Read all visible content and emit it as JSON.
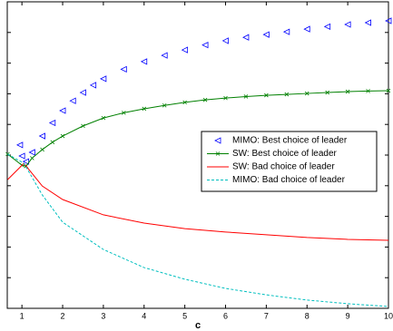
{
  "chart_data": {
    "type": "line",
    "xlabel": "c",
    "xlim": [
      0.64,
      10
    ],
    "xticks": [
      1,
      2,
      3,
      4,
      5,
      6,
      7,
      8,
      9,
      10
    ],
    "ylim": [
      0,
      10
    ],
    "yticks": [
      0,
      1,
      2,
      3,
      4,
      5,
      6,
      7,
      8,
      9,
      10
    ],
    "legend": "center-right",
    "series": [
      {
        "name": "MIMO: Best choice of leader",
        "color": "#0000ff",
        "style": "markers",
        "x": [
          0.95,
          1,
          1.1,
          1.25,
          1.5,
          1.75,
          2,
          2.25,
          2.5,
          2.75,
          3,
          3.5,
          4,
          4.5,
          5,
          5.5,
          6,
          6.5,
          7,
          7.5,
          8,
          8.5,
          9,
          9.5,
          10
        ],
        "values": [
          5.33,
          4.97,
          4.79,
          5.09,
          5.62,
          6.05,
          6.45,
          6.77,
          7.04,
          7.28,
          7.49,
          7.8,
          8.05,
          8.25,
          8.43,
          8.59,
          8.73,
          8.84,
          8.93,
          9.02,
          9.11,
          9.19,
          9.26,
          9.32,
          9.38
        ]
      },
      {
        "name": "SW: Best choice of leader",
        "color": "#008000",
        "style": "line-markers",
        "x": [
          0.65,
          1,
          1.1,
          1.25,
          1.5,
          1.75,
          2,
          2.5,
          3,
          3.5,
          4,
          4.5,
          5,
          5.5,
          6,
          6.5,
          7,
          7.5,
          8,
          8.5,
          9,
          9.5,
          10
        ],
        "values": [
          5.03,
          4.67,
          4.64,
          4.9,
          5.18,
          5.42,
          5.62,
          5.95,
          6.21,
          6.38,
          6.51,
          6.62,
          6.72,
          6.8,
          6.86,
          6.91,
          6.95,
          6.98,
          7.01,
          7.04,
          7.07,
          7.09,
          7.1
        ]
      },
      {
        "name": "SW: Bad choice of leader",
        "color": "#ff0000",
        "style": "line",
        "x": [
          0.65,
          1.05,
          1.5,
          2,
          3,
          4,
          5,
          6,
          7,
          8,
          9,
          10
        ],
        "values": [
          4.2,
          4.73,
          3.99,
          3.55,
          3.05,
          2.78,
          2.6,
          2.49,
          2.4,
          2.31,
          2.25,
          2.22
        ]
      },
      {
        "name": "MIMO: Bad choice of leader",
        "color": "#00bfbf",
        "style": "dashed",
        "x": [
          0.65,
          1.05,
          1.5,
          2,
          3,
          4,
          5,
          6,
          7,
          8,
          9,
          10
        ],
        "values": [
          5.03,
          4.73,
          3.7,
          2.81,
          1.92,
          1.33,
          0.95,
          0.65,
          0.44,
          0.27,
          0.15,
          0.06
        ]
      }
    ]
  }
}
